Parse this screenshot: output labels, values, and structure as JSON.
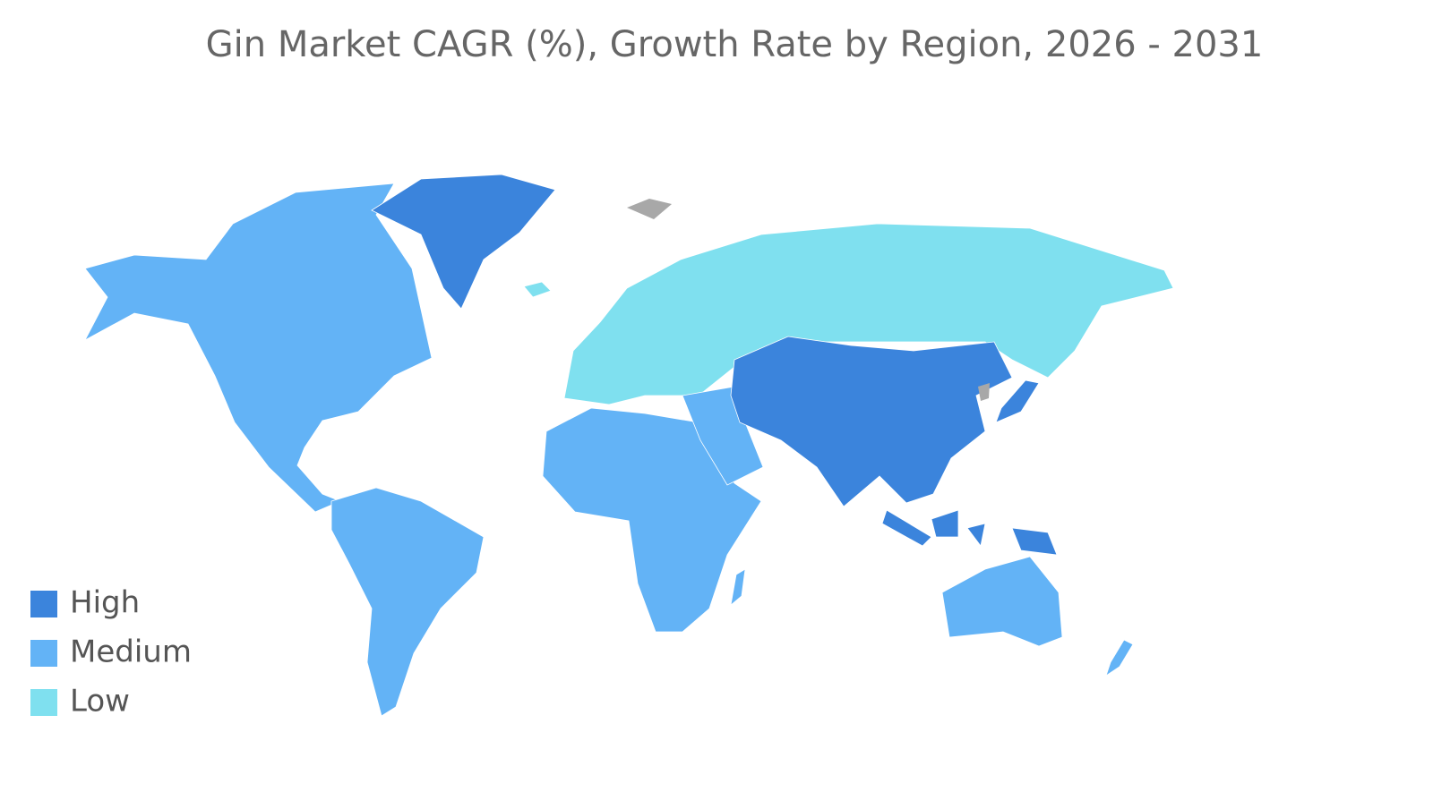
{
  "title": "Gin Market CAGR (%), Growth Rate by Region, 2026 - 2031",
  "legend": [
    {
      "label": "High",
      "color": "#3b84dc"
    },
    {
      "label": "Medium",
      "color": "#63b3f6"
    },
    {
      "label": "Low",
      "color": "#7fe0ef"
    }
  ]
}
